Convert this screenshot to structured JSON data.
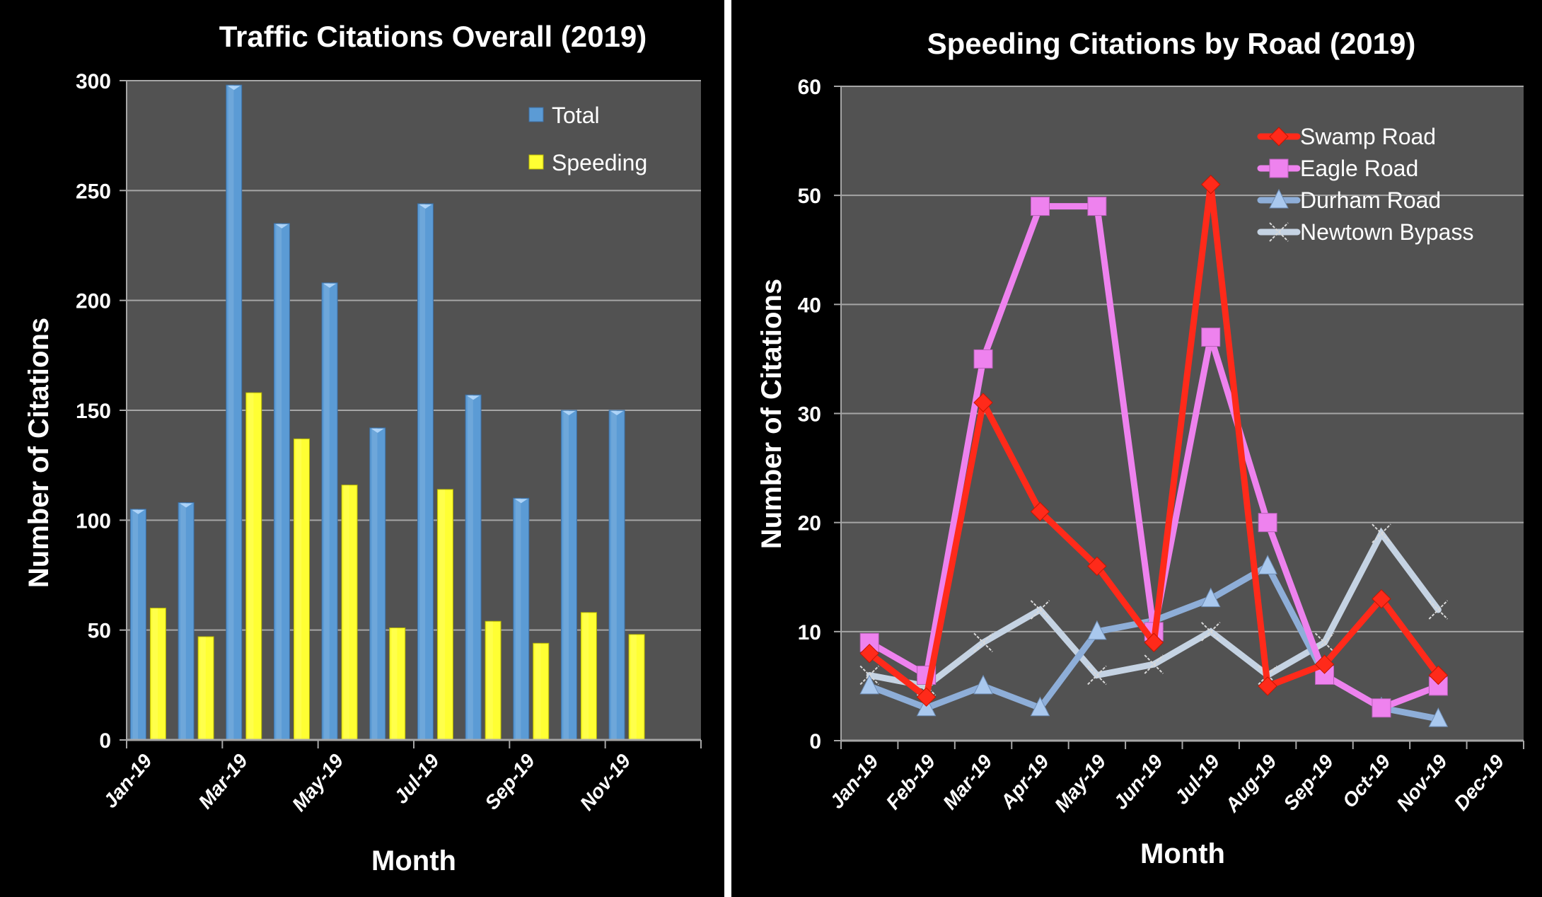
{
  "colors": {
    "background": "#000000",
    "plot_bg": "#525252",
    "gridline": "#a6a6a6",
    "divider": "#ffffff",
    "text": "#ffffff"
  },
  "chart_data": [
    {
      "type": "bar",
      "title": "Traffic Citations Overall (2019)",
      "xlabel": "Month",
      "ylabel": "Number of Citations",
      "ylim": [
        0,
        300
      ],
      "yticks": [
        "0",
        "50",
        "100",
        "150",
        "200",
        "250",
        "300"
      ],
      "ytick_values": [
        0,
        50,
        100,
        150,
        200,
        250,
        300
      ],
      "grid": true,
      "legend_position": "top-right",
      "categories": [
        "Jan-19",
        "Feb-19",
        "Mar-19",
        "Apr-19",
        "May-19",
        "Jun-19",
        "Jul-19",
        "Aug-19",
        "Sep-19",
        "Oct-19",
        "Nov-19",
        "Dec-19"
      ],
      "xtick_labels": [
        "Jan-19",
        "Mar-19",
        "May-19",
        "Jul-19",
        "Sep-19",
        "Nov-19"
      ],
      "series": [
        {
          "name": "Total",
          "color": "#5b9bd5",
          "values": [
            105,
            108,
            298,
            235,
            208,
            142,
            244,
            157,
            110,
            150,
            150,
            null
          ]
        },
        {
          "name": "Speeding",
          "color": "#ffff33",
          "values": [
            60,
            47,
            158,
            137,
            116,
            51,
            114,
            54,
            44,
            58,
            48,
            null
          ]
        }
      ]
    },
    {
      "type": "line",
      "title": "Speeding Citations by Road (2019)",
      "xlabel": "Month",
      "ylabel": "Number of Citations",
      "ylim": [
        0,
        60
      ],
      "yticks": [
        "0",
        "10",
        "20",
        "30",
        "40",
        "50",
        "60"
      ],
      "ytick_values": [
        0,
        10,
        20,
        30,
        40,
        50,
        60
      ],
      "grid": true,
      "legend_position": "top-right",
      "categories": [
        "Jan-19",
        "Feb-19",
        "Mar-19",
        "Apr-19",
        "May-19",
        "Jun-19",
        "Jul-19",
        "Aug-19",
        "Sep-19",
        "Oct-19",
        "Nov-19",
        "Dec-19"
      ],
      "xtick_labels": [
        "Jan-19",
        "Feb-19",
        "Mar-19",
        "Apr-19",
        "May-19",
        "Jun-19",
        "Jul-19",
        "Aug-19",
        "Sep-19",
        "Oct-19",
        "Nov-19",
        "Dec-19"
      ],
      "series": [
        {
          "name": "Swamp Road",
          "color": "#ff2a1a",
          "marker": "diamond",
          "values": [
            8,
            4,
            31,
            21,
            16,
            9,
            51,
            5,
            7,
            13,
            6,
            null
          ]
        },
        {
          "name": "Eagle Road",
          "color": "#ee82ee",
          "marker": "square",
          "values": [
            9,
            6,
            35,
            49,
            49,
            10,
            37,
            20,
            6,
            3,
            5,
            null
          ]
        },
        {
          "name": "Durham Road",
          "color": "#8eaed8",
          "marker": "triangle",
          "values": [
            5,
            3,
            5,
            3,
            10,
            11,
            13,
            16,
            6,
            3,
            2,
            null
          ]
        },
        {
          "name": "Newtown Bypass",
          "color": "#c5d3e3",
          "marker": "x",
          "values": [
            6,
            5,
            9,
            12,
            6,
            7,
            10,
            6,
            9,
            19,
            12,
            null
          ]
        }
      ]
    }
  ]
}
